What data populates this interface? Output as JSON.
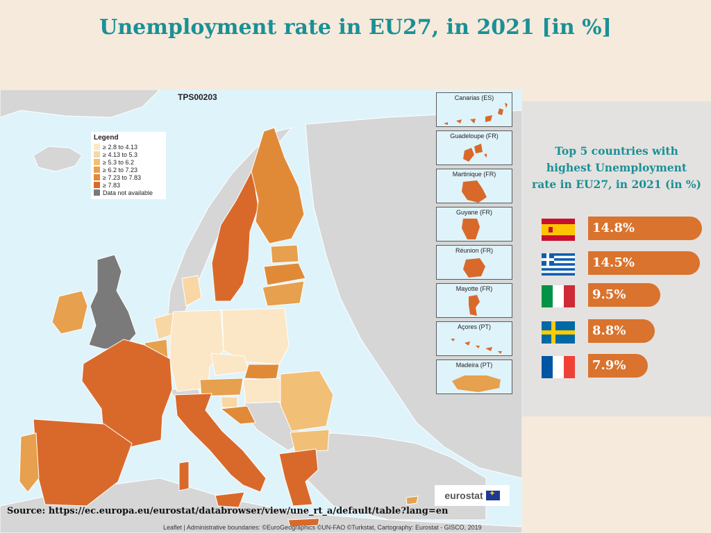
{
  "title": "Unemployment rate in EU27, in 2021 [in %]",
  "map": {
    "id_label": "TPS00203",
    "legend": {
      "title": "Legend",
      "items": [
        {
          "label": "≥ 2.8 to 4.13",
          "color": "#fbe6c6"
        },
        {
          "label": "≥ 4.13 to 5.3",
          "color": "#f8d7a4"
        },
        {
          "label": "≥ 5.3 to 6.2",
          "color": "#f1bf76"
        },
        {
          "label": "≥ 6.2 to 7.23",
          "color": "#e6a04e"
        },
        {
          "label": "≥ 7.23 to 7.83",
          "color": "#e08a38"
        },
        {
          "label": "≥ 7.83",
          "color": "#d9692b"
        },
        {
          "label": "Data not available",
          "color": "#7a7a7a"
        }
      ]
    },
    "insets": [
      "Canarias (ES)",
      "Guadeloupe (FR)",
      "Martinique (FR)",
      "Guyane (FR)",
      "Réunion (FR)",
      "Mayotte (FR)",
      "Açores (PT)",
      "Madeira (PT)"
    ],
    "logo": "eurostat",
    "attribution": "Leaflet | Administrative boundaries: ©EuroGeographics ©UN-FAO ©Turkstat, Cartography: Eurostat - GISCO, 2019"
  },
  "source": "Source: https://ec.europa.eu/eurostat/databrowser/view/une_rt_a/default/table?lang=en",
  "top5": {
    "title_lines": [
      "Top 5 countries with",
      "highest Unemployment",
      "rate in EU27, in 2021 (in %)"
    ],
    "countries": [
      {
        "flag": "spain-flag",
        "value": "14.8%",
        "rate": 14.8
      },
      {
        "flag": "greece-flag",
        "value": "14.5%",
        "rate": 14.5
      },
      {
        "flag": "italy-flag",
        "value": "9.5%",
        "rate": 9.5
      },
      {
        "flag": "sweden-flag",
        "value": "8.8%",
        "rate": 8.8
      },
      {
        "flag": "france-flag",
        "value": "7.9%",
        "rate": 7.9
      }
    ]
  },
  "colors": {
    "accent": "#1a9096",
    "bar": "#d9732e"
  }
}
